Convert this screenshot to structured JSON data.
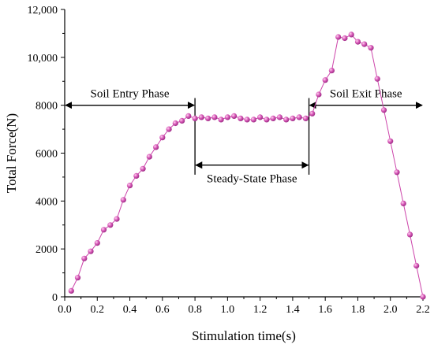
{
  "chart_data": {
    "type": "line",
    "xlabel": "Stimulation time(s)",
    "ylabel": "Total Force(N)",
    "xlim": [
      0.0,
      2.2
    ],
    "ylim": [
      0,
      12000
    ],
    "x_ticks": [
      0.0,
      0.2,
      0.4,
      0.6,
      0.8,
      1.0,
      1.2,
      1.4,
      1.6,
      1.8,
      2.0,
      2.2
    ],
    "x_tick_labels": [
      "0.0",
      "0.2",
      "0.4",
      "0.6",
      "0.8",
      "1.0",
      "1.2",
      "1.4",
      "1.6",
      "1.8",
      "2.0",
      "2.2"
    ],
    "y_ticks": [
      0,
      2000,
      4000,
      6000,
      8000,
      10000,
      12000
    ],
    "y_tick_labels": [
      "0",
      "2000",
      "4000",
      "6000",
      "8000",
      "10,000",
      "12,000"
    ],
    "grid": false,
    "series": [
      {
        "color": "#cc44aa",
        "marker": "sphere",
        "x": [
          0.04,
          0.08,
          0.12,
          0.16,
          0.2,
          0.24,
          0.28,
          0.32,
          0.36,
          0.4,
          0.44,
          0.48,
          0.52,
          0.56,
          0.6,
          0.64,
          0.68,
          0.72,
          0.76,
          0.8,
          0.84,
          0.88,
          0.92,
          0.96,
          1.0,
          1.04,
          1.08,
          1.12,
          1.16,
          1.2,
          1.24,
          1.28,
          1.32,
          1.36,
          1.4,
          1.44,
          1.48,
          1.52,
          1.56,
          1.6,
          1.64,
          1.68,
          1.72,
          1.76,
          1.8,
          1.84,
          1.88,
          1.92,
          1.96,
          2.0,
          2.04,
          2.08,
          2.12,
          2.16,
          2.2
        ],
        "y": [
          250,
          800,
          1600,
          1900,
          2250,
          2800,
          3000,
          3250,
          4050,
          4650,
          5050,
          5350,
          5850,
          6250,
          6650,
          7000,
          7250,
          7350,
          7550,
          7450,
          7500,
          7450,
          7500,
          7400,
          7500,
          7550,
          7450,
          7400,
          7400,
          7500,
          7400,
          7450,
          7500,
          7400,
          7450,
          7500,
          7450,
          7650,
          8450,
          9050,
          9450,
          10850,
          10800,
          10950,
          10650,
          10550,
          10400,
          9100,
          7800,
          6500,
          5200,
          3900,
          2600,
          1300,
          0
        ]
      }
    ],
    "annotations": [
      {
        "label": "Soil Entry Phase",
        "x_from": 0.0,
        "x_to": 0.8,
        "y": 8000
      },
      {
        "label": "Steady-State Phase",
        "x_from": 0.8,
        "x_to": 1.5,
        "y": 5500
      },
      {
        "label": "Soil Exit Phase",
        "x_from": 1.5,
        "x_to": 2.2,
        "y": 8000
      }
    ],
    "phase_boundaries": [
      {
        "x": 0.8,
        "y_from": 5100,
        "y_to": 8300
      },
      {
        "x": 1.5,
        "y_from": 5100,
        "y_to": 8300
      }
    ]
  }
}
